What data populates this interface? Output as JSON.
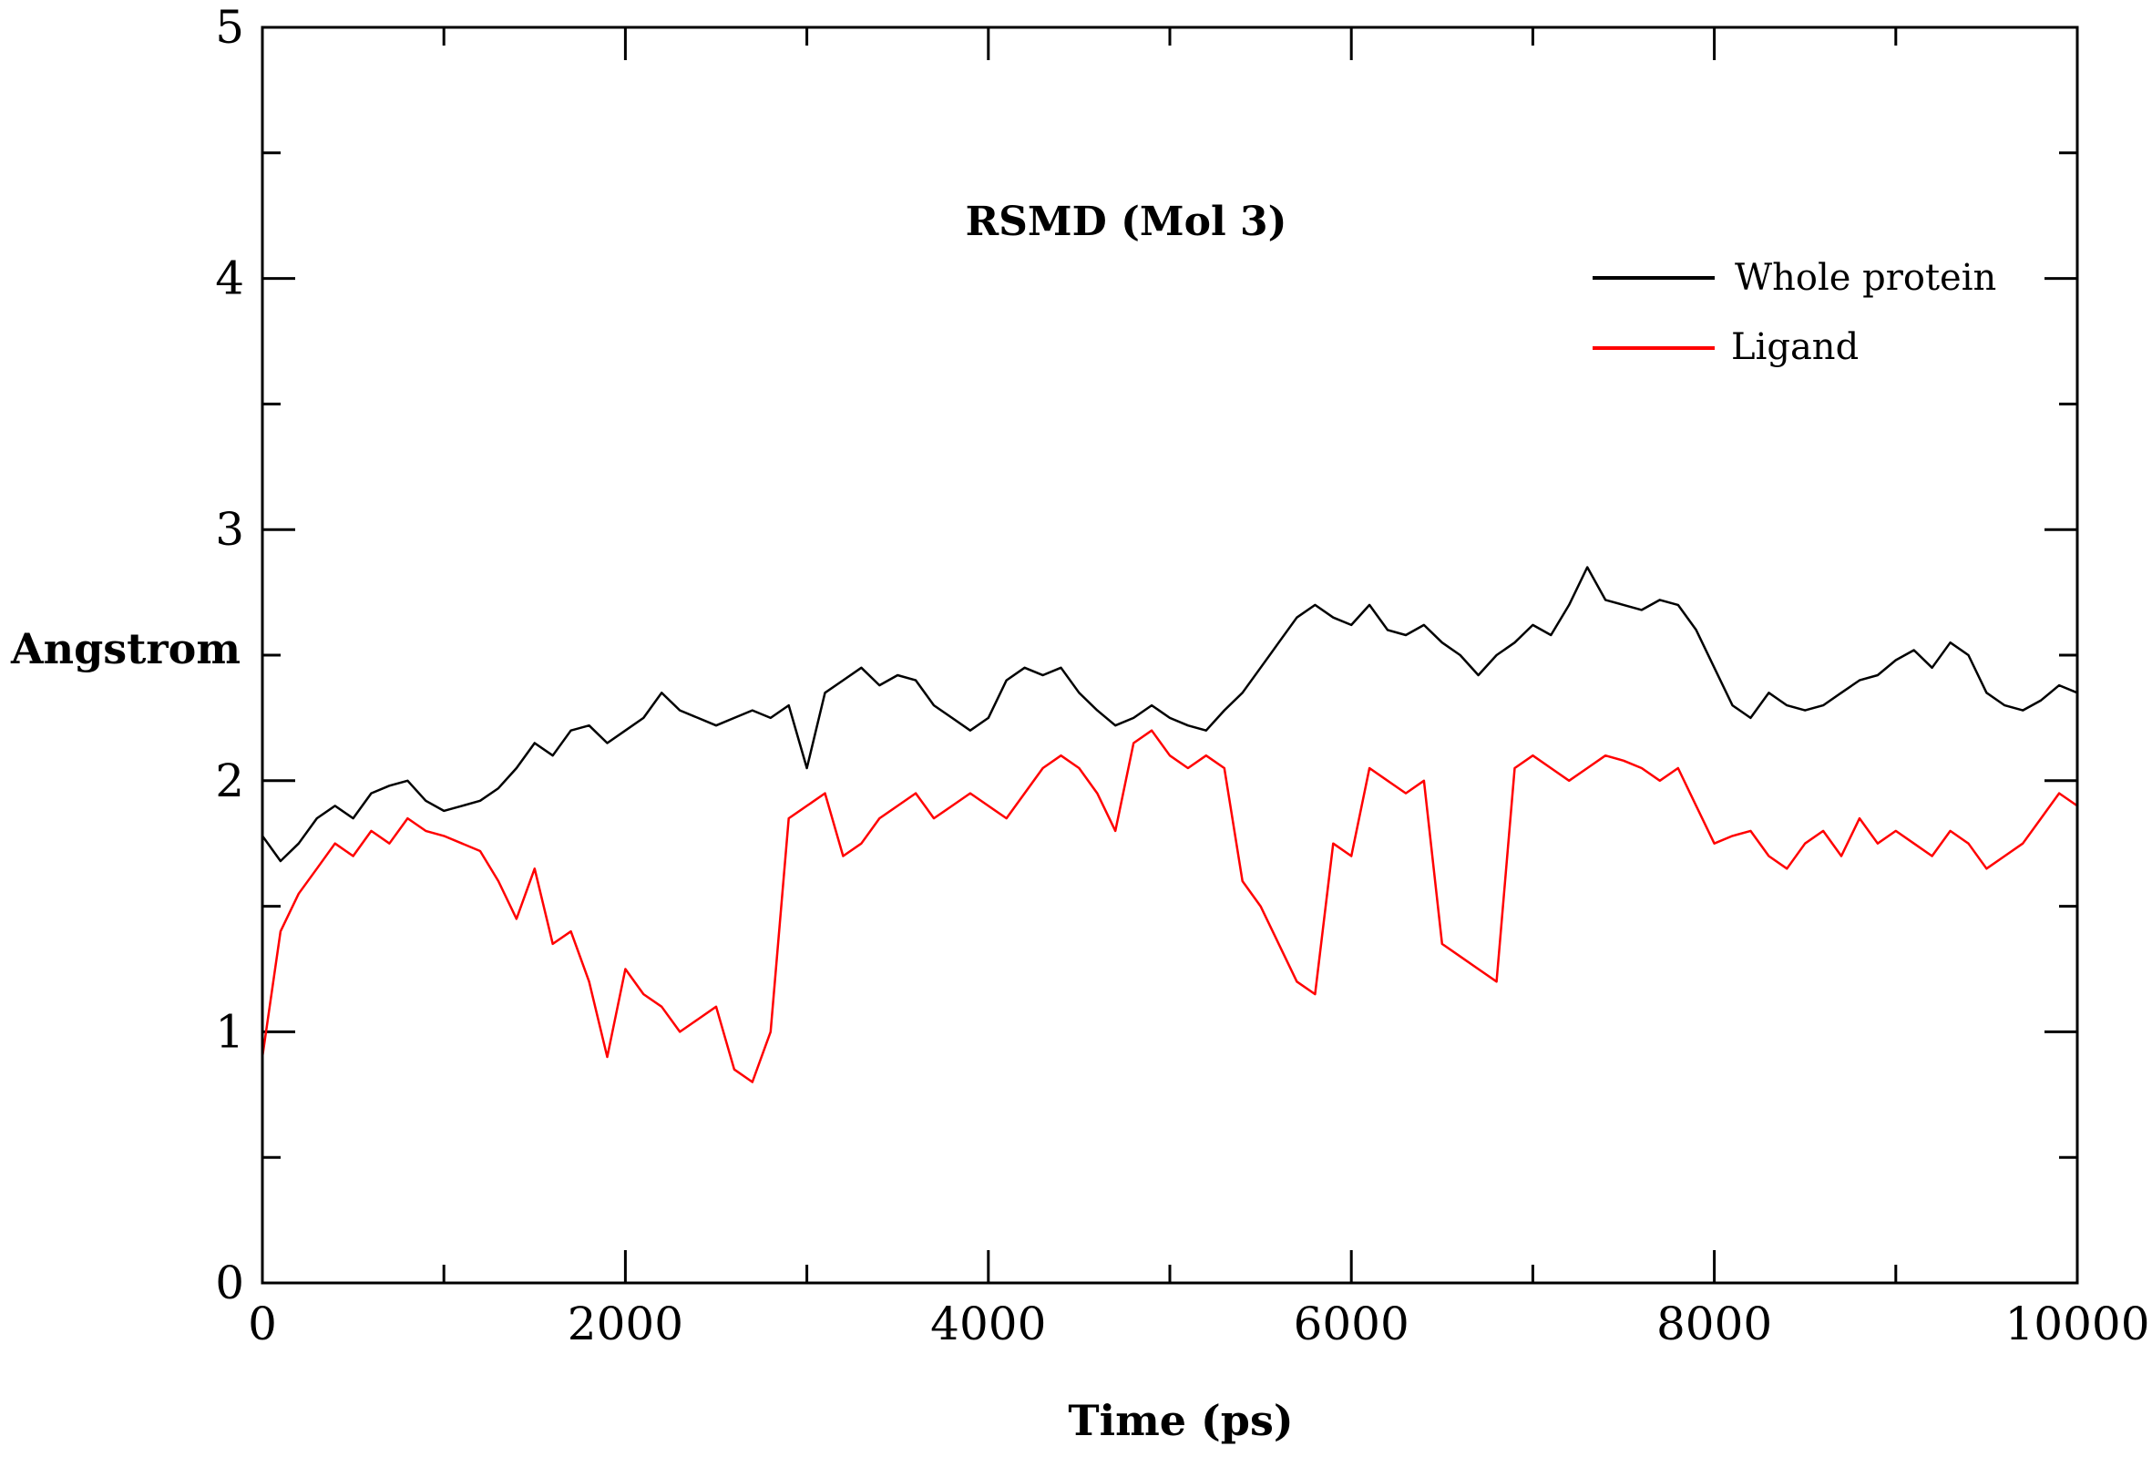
{
  "chart_data": {
    "type": "line",
    "title": "RSMD (Mol 3)",
    "xlabel": "Time (ps)",
    "ylabel": "Angstrom",
    "xlim": [
      0,
      10000
    ],
    "ylim": [
      0,
      5
    ],
    "x_ticks": [
      "0",
      "2000",
      "4000",
      "6000",
      "8000",
      "10000"
    ],
    "y_ticks": [
      "0",
      "1",
      "2",
      "3",
      "4",
      "5"
    ],
    "grid": false,
    "legend_position": "top-right",
    "series": [
      {
        "name": "Whole protein",
        "color": "#000000",
        "x": [
          0,
          100,
          200,
          300,
          400,
          500,
          600,
          700,
          800,
          900,
          1000,
          1100,
          1200,
          1300,
          1400,
          1500,
          1600,
          1700,
          1800,
          1900,
          2000,
          2100,
          2200,
          2300,
          2400,
          2500,
          2600,
          2700,
          2800,
          2900,
          3000,
          3100,
          3200,
          3300,
          3400,
          3500,
          3600,
          3700,
          3800,
          3900,
          4000,
          4100,
          4200,
          4300,
          4400,
          4500,
          4600,
          4700,
          4800,
          4900,
          5000,
          5100,
          5200,
          5300,
          5400,
          5500,
          5600,
          5700,
          5800,
          5900,
          6000,
          6100,
          6200,
          6300,
          6400,
          6500,
          6600,
          6700,
          6800,
          6900,
          7000,
          7100,
          7200,
          7300,
          7400,
          7500,
          7600,
          7700,
          7800,
          7900,
          8000,
          8100,
          8200,
          8300,
          8400,
          8500,
          8600,
          8700,
          8800,
          8900,
          9000,
          9100,
          9200,
          9300,
          9400,
          9500,
          9600,
          9700,
          9800,
          9900,
          10000
        ],
        "values": [
          1.78,
          1.68,
          1.75,
          1.85,
          1.9,
          1.85,
          1.95,
          1.98,
          2.0,
          1.92,
          1.88,
          1.9,
          1.92,
          1.97,
          2.05,
          2.15,
          2.1,
          2.2,
          2.22,
          2.15,
          2.2,
          2.25,
          2.35,
          2.28,
          2.25,
          2.22,
          2.25,
          2.28,
          2.25,
          2.3,
          2.05,
          2.35,
          2.4,
          2.45,
          2.38,
          2.42,
          2.4,
          2.3,
          2.25,
          2.2,
          2.25,
          2.4,
          2.45,
          2.42,
          2.45,
          2.35,
          2.28,
          2.22,
          2.25,
          2.3,
          2.25,
          2.22,
          2.2,
          2.28,
          2.35,
          2.45,
          2.55,
          2.65,
          2.7,
          2.65,
          2.62,
          2.7,
          2.6,
          2.58,
          2.62,
          2.55,
          2.5,
          2.42,
          2.5,
          2.55,
          2.62,
          2.58,
          2.7,
          2.85,
          2.72,
          2.7,
          2.68,
          2.72,
          2.7,
          2.6,
          2.45,
          2.3,
          2.25,
          2.35,
          2.3,
          2.28,
          2.3,
          2.35,
          2.4,
          2.42,
          2.48,
          2.52,
          2.45,
          2.55,
          2.5,
          2.35,
          2.3,
          2.28,
          2.32,
          2.38,
          2.35
        ]
      },
      {
        "name": "Ligand",
        "color": "#ff0000",
        "x": [
          0,
          100,
          200,
          300,
          400,
          500,
          600,
          700,
          800,
          900,
          1000,
          1100,
          1200,
          1300,
          1400,
          1500,
          1600,
          1700,
          1800,
          1900,
          2000,
          2100,
          2200,
          2300,
          2400,
          2500,
          2600,
          2700,
          2800,
          2900,
          3000,
          3100,
          3200,
          3300,
          3400,
          3500,
          3600,
          3700,
          3800,
          3900,
          4000,
          4100,
          4200,
          4300,
          4400,
          4500,
          4600,
          4700,
          4800,
          4900,
          5000,
          5100,
          5200,
          5300,
          5400,
          5500,
          5600,
          5700,
          5800,
          5900,
          6000,
          6100,
          6200,
          6300,
          6400,
          6500,
          6600,
          6700,
          6800,
          6900,
          7000,
          7100,
          7200,
          7300,
          7400,
          7500,
          7600,
          7700,
          7800,
          7900,
          8000,
          8100,
          8200,
          8300,
          8400,
          8500,
          8600,
          8700,
          8800,
          8900,
          9000,
          9100,
          9200,
          9300,
          9400,
          9500,
          9600,
          9700,
          9800,
          9900,
          10000
        ],
        "values": [
          0.9,
          1.4,
          1.55,
          1.65,
          1.75,
          1.7,
          1.8,
          1.75,
          1.85,
          1.8,
          1.78,
          1.75,
          1.72,
          1.6,
          1.45,
          1.65,
          1.35,
          1.4,
          1.2,
          0.9,
          1.25,
          1.15,
          1.1,
          1.0,
          1.05,
          1.1,
          0.85,
          0.8,
          1.0,
          1.85,
          1.9,
          1.95,
          1.7,
          1.75,
          1.85,
          1.9,
          1.95,
          1.85,
          1.9,
          1.95,
          1.9,
          1.85,
          1.95,
          2.05,
          2.1,
          2.05,
          1.95,
          1.8,
          2.15,
          2.2,
          2.1,
          2.05,
          2.1,
          2.05,
          1.6,
          1.5,
          1.35,
          1.2,
          1.15,
          1.75,
          1.7,
          2.05,
          2.0,
          1.95,
          2.0,
          1.35,
          1.3,
          1.25,
          1.2,
          2.05,
          2.1,
          2.05,
          2.0,
          2.05,
          2.1,
          2.08,
          2.05,
          2.0,
          2.05,
          1.9,
          1.75,
          1.78,
          1.8,
          1.7,
          1.65,
          1.75,
          1.8,
          1.7,
          1.85,
          1.75,
          1.8,
          1.75,
          1.7,
          1.8,
          1.75,
          1.65,
          1.7,
          1.75,
          1.85,
          1.95,
          1.9
        ]
      }
    ]
  }
}
